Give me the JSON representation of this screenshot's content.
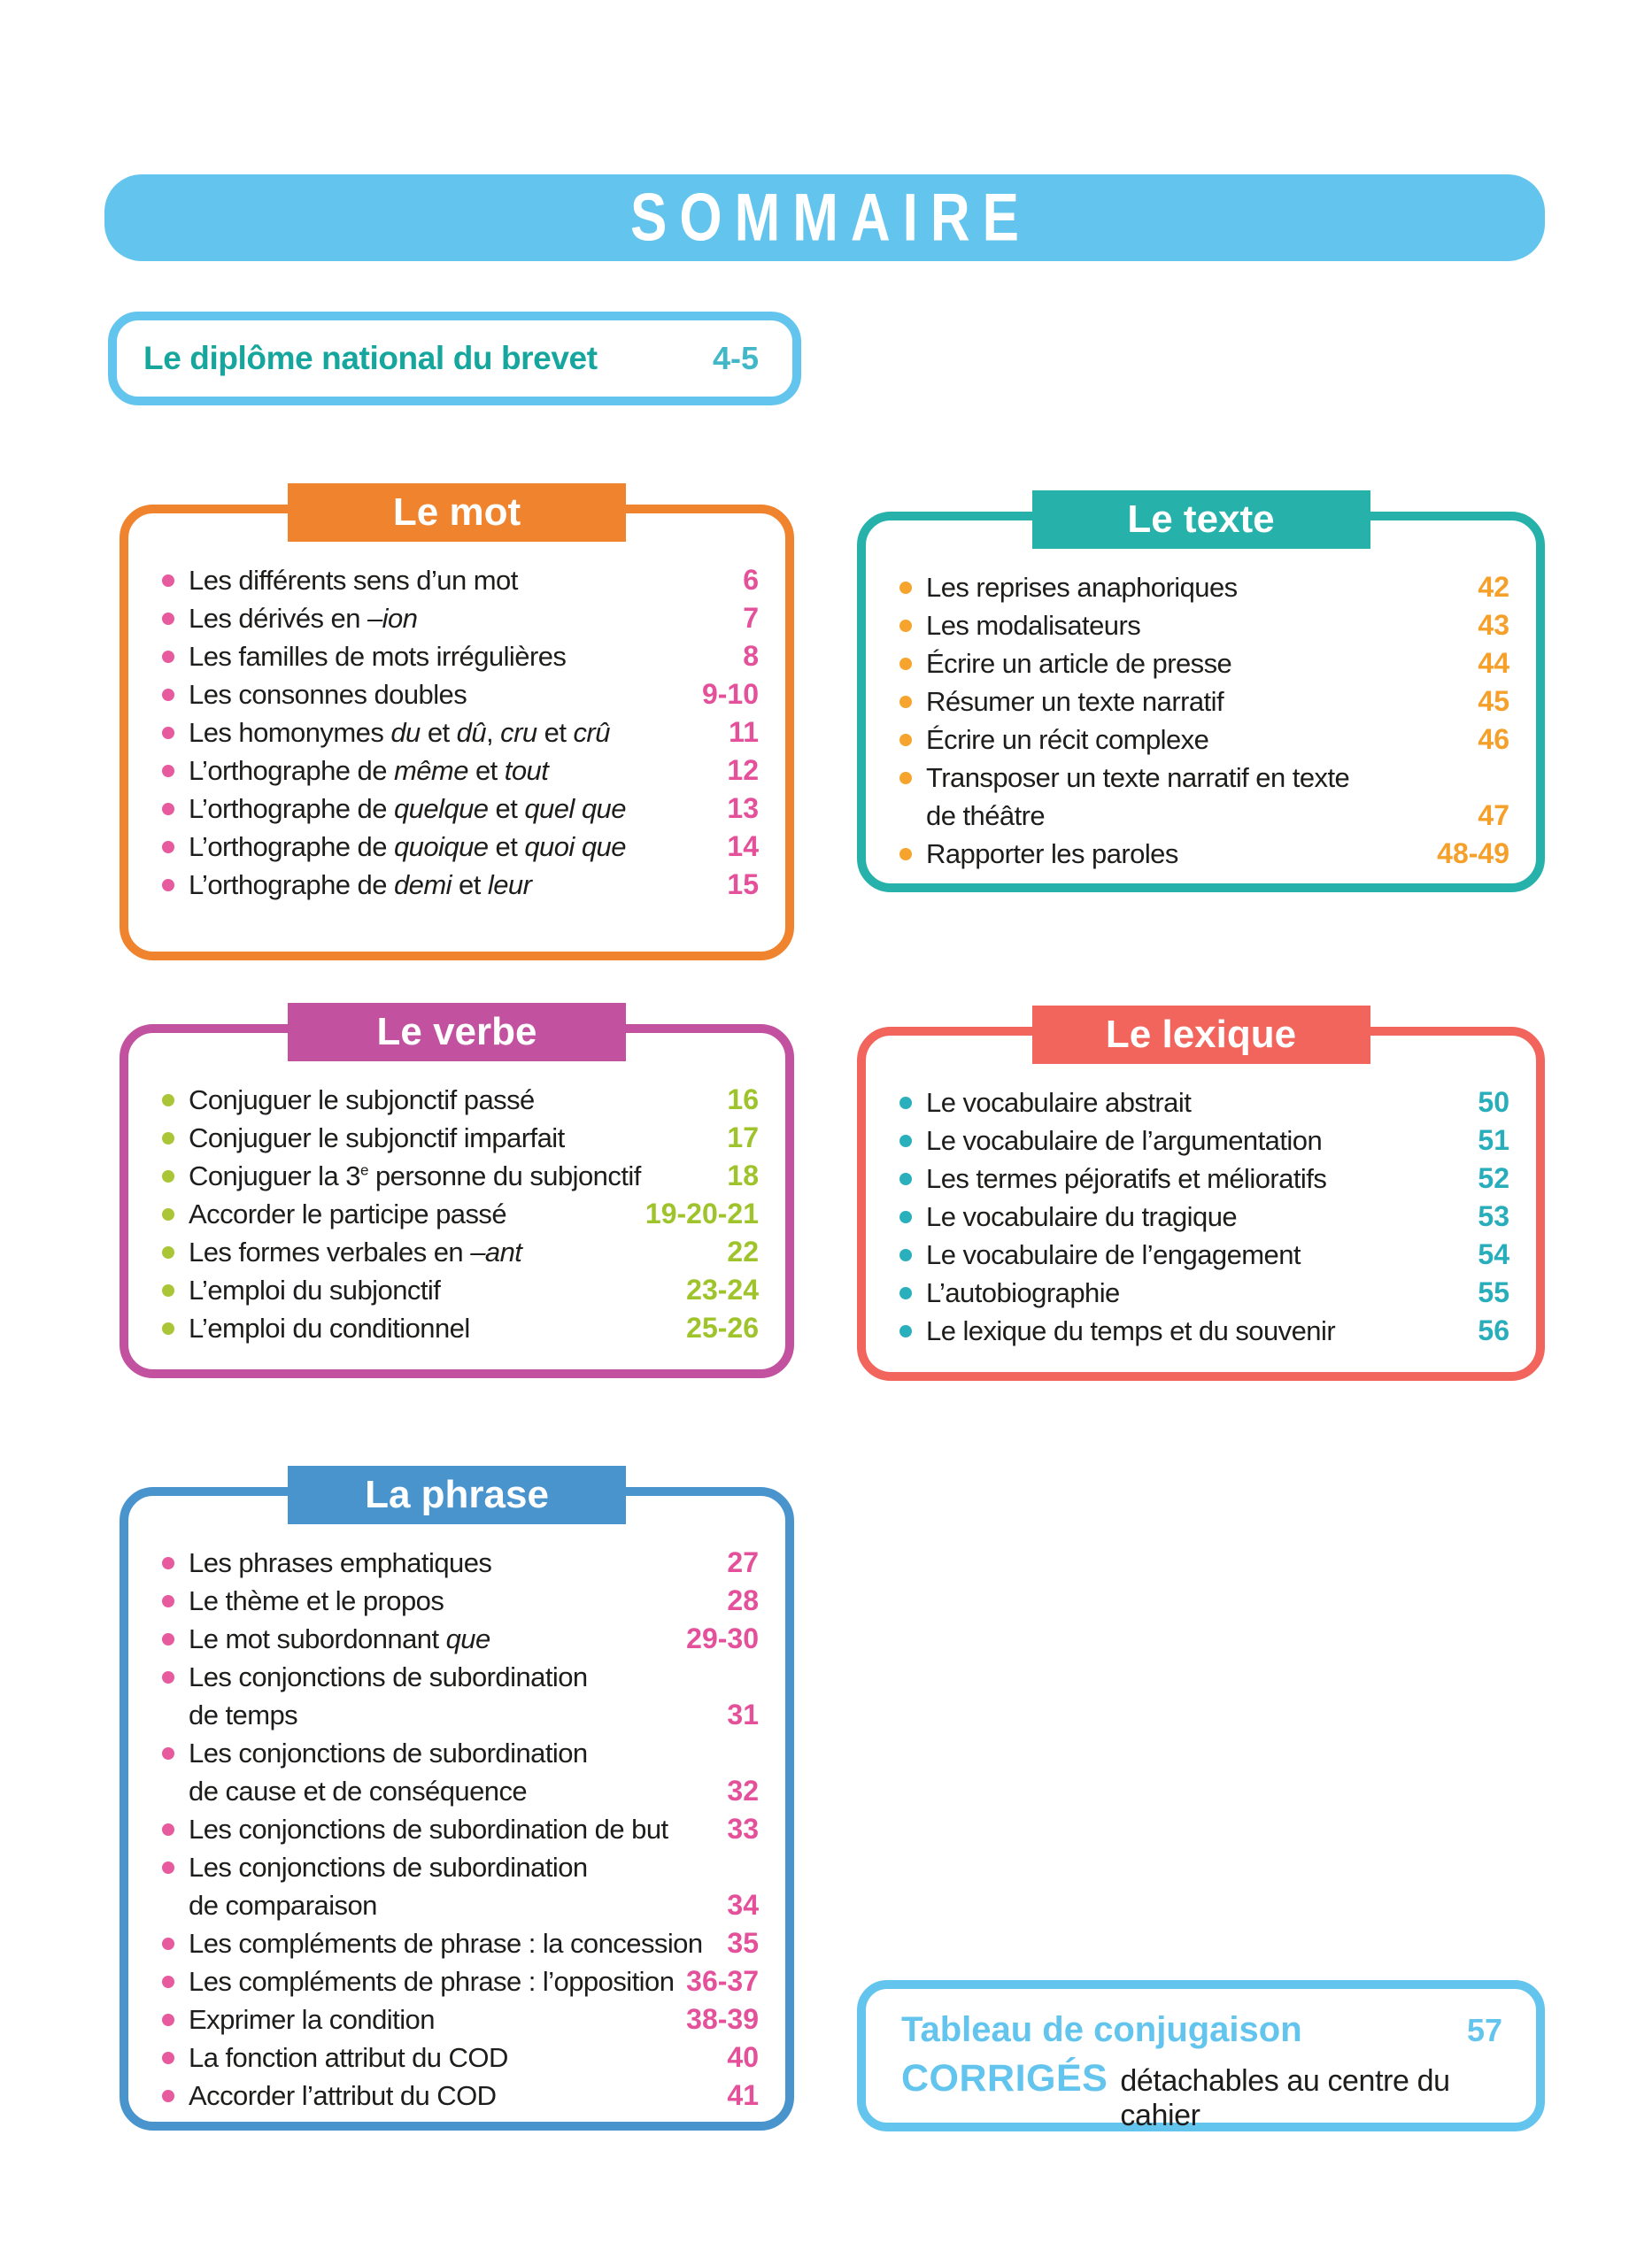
{
  "page_title": "SOMMAIRE",
  "colors": {
    "lightblue": "#63c5ee",
    "text": "#1d1d1b",
    "intro_label": "#16a69d",
    "intro_page": "#41b7c7"
  },
  "intro_box": {
    "label": "Le diplôme national du brevet",
    "page": "4-5"
  },
  "sections": [
    {
      "id": "mot",
      "title": "Le mot",
      "accent": "#f0832d",
      "bullet_color": "#e85a9e",
      "number_color": "#e4509a",
      "column": "left",
      "items": [
        {
          "lines": [
            [
              {
                "t": "Les différents sens d’un mot"
              }
            ]
          ],
          "page": "6"
        },
        {
          "lines": [
            [
              {
                "t": "Les dérivés en "
              },
              {
                "t": "–ion",
                "i": true
              }
            ]
          ],
          "page": "7"
        },
        {
          "lines": [
            [
              {
                "t": "Les familles de mots irrégulières"
              }
            ]
          ],
          "page": "8"
        },
        {
          "lines": [
            [
              {
                "t": "Les consonnes doubles"
              }
            ]
          ],
          "page": "9-10"
        },
        {
          "lines": [
            [
              {
                "t": "Les homonymes "
              },
              {
                "t": "du",
                "i": true
              },
              {
                "t": " et "
              },
              {
                "t": "dû",
                "i": true
              },
              {
                "t": ", "
              },
              {
                "t": "cru",
                "i": true
              },
              {
                "t": " et "
              },
              {
                "t": "crû",
                "i": true
              }
            ]
          ],
          "page": "11"
        },
        {
          "lines": [
            [
              {
                "t": "L’orthographe de "
              },
              {
                "t": "même",
                "i": true
              },
              {
                "t": " et "
              },
              {
                "t": "tout",
                "i": true
              }
            ]
          ],
          "page": "12"
        },
        {
          "lines": [
            [
              {
                "t": "L’orthographe de "
              },
              {
                "t": "quelque",
                "i": true
              },
              {
                "t": " et "
              },
              {
                "t": "quel que",
                "i": true
              }
            ]
          ],
          "page": "13"
        },
        {
          "lines": [
            [
              {
                "t": "L’orthographe de "
              },
              {
                "t": "quoique",
                "i": true
              },
              {
                "t": " et "
              },
              {
                "t": "quoi que",
                "i": true
              }
            ]
          ],
          "page": "14"
        },
        {
          "lines": [
            [
              {
                "t": "L’orthographe de "
              },
              {
                "t": "demi",
                "i": true
              },
              {
                "t": " et "
              },
              {
                "t": "leur",
                "i": true
              }
            ]
          ],
          "page": "15"
        }
      ]
    },
    {
      "id": "texte",
      "title": "Le texte",
      "accent": "#26b2ab",
      "bullet_color": "#f6a42d",
      "number_color": "#f5a02b",
      "column": "right",
      "items": [
        {
          "lines": [
            [
              {
                "t": "Les reprises anaphoriques"
              }
            ]
          ],
          "page": "42"
        },
        {
          "lines": [
            [
              {
                "t": "Les modalisateurs"
              }
            ]
          ],
          "page": "43"
        },
        {
          "lines": [
            [
              {
                "t": "Écrire un article de presse"
              }
            ]
          ],
          "page": "44"
        },
        {
          "lines": [
            [
              {
                "t": "Résumer un texte narratif"
              }
            ]
          ],
          "page": "45"
        },
        {
          "lines": [
            [
              {
                "t": "Écrire un récit complexe"
              }
            ]
          ],
          "page": "46"
        },
        {
          "lines": [
            [
              {
                "t": "Transposer un texte narratif en texte"
              }
            ],
            [
              {
                "t": "de théâtre"
              }
            ]
          ],
          "page": "47"
        },
        {
          "lines": [
            [
              {
                "t": "Rapporter les paroles"
              }
            ]
          ],
          "page": "48-49"
        }
      ]
    },
    {
      "id": "verbe",
      "title": "Le verbe",
      "accent": "#c2519f",
      "bullet_color": "#aac636",
      "number_color": "#9fc32a",
      "column": "left",
      "items": [
        {
          "lines": [
            [
              {
                "t": "Conjuguer le subjonctif passé"
              }
            ]
          ],
          "page": "16"
        },
        {
          "lines": [
            [
              {
                "t": "Conjuguer le subjonctif imparfait"
              }
            ]
          ],
          "page": "17"
        },
        {
          "lines": [
            [
              {
                "t": "Conjuguer la 3"
              },
              {
                "t": "e",
                "sup": true
              },
              {
                "t": " personne du subjonctif"
              }
            ]
          ],
          "page": "18"
        },
        {
          "lines": [
            [
              {
                "t": "Accorder le participe passé"
              }
            ]
          ],
          "page": "19-20-21"
        },
        {
          "lines": [
            [
              {
                "t": "Les formes verbales en "
              },
              {
                "t": "–ant",
                "i": true
              }
            ]
          ],
          "page": "22"
        },
        {
          "lines": [
            [
              {
                "t": "L’emploi du subjonctif"
              }
            ]
          ],
          "page": "23-24"
        },
        {
          "lines": [
            [
              {
                "t": "L’emploi du conditionnel"
              }
            ]
          ],
          "page": "25-26"
        }
      ]
    },
    {
      "id": "lexique",
      "title": "Le lexique",
      "accent": "#f2655c",
      "bullet_color": "#2aafbd",
      "number_color": "#28adbb",
      "column": "right",
      "items": [
        {
          "lines": [
            [
              {
                "t": "Le vocabulaire abstrait"
              }
            ]
          ],
          "page": "50"
        },
        {
          "lines": [
            [
              {
                "t": "Le vocabulaire de l’argumentation"
              }
            ]
          ],
          "page": "51"
        },
        {
          "lines": [
            [
              {
                "t": "Les termes péjoratifs et mélioratifs"
              }
            ]
          ],
          "page": "52"
        },
        {
          "lines": [
            [
              {
                "t": "Le vocabulaire du tragique"
              }
            ]
          ],
          "page": "53"
        },
        {
          "lines": [
            [
              {
                "t": "Le vocabulaire de l’engagement"
              }
            ]
          ],
          "page": "54"
        },
        {
          "lines": [
            [
              {
                "t": "L’autobiographie"
              }
            ]
          ],
          "page": "55"
        },
        {
          "lines": [
            [
              {
                "t": "Le lexique du temps et du souvenir"
              }
            ]
          ],
          "page": "56"
        }
      ]
    },
    {
      "id": "phrase",
      "title": "La phrase",
      "accent": "#4a94cd",
      "bullet_color": "#e85a9e",
      "number_color": "#e4509a",
      "column": "left",
      "items": [
        {
          "lines": [
            [
              {
                "t": "Les phrases emphatiques"
              }
            ]
          ],
          "page": "27"
        },
        {
          "lines": [
            [
              {
                "t": "Le thème et le propos"
              }
            ]
          ],
          "page": "28"
        },
        {
          "lines": [
            [
              {
                "t": "Le mot subordonnant "
              },
              {
                "t": "que",
                "i": true
              }
            ]
          ],
          "page": "29-30"
        },
        {
          "lines": [
            [
              {
                "t": "Les conjonctions de subordination"
              }
            ],
            [
              {
                "t": "de temps"
              }
            ]
          ],
          "page": "31"
        },
        {
          "lines": [
            [
              {
                "t": "Les conjonctions de subordination"
              }
            ],
            [
              {
                "t": "de cause et de conséquence"
              }
            ]
          ],
          "page": "32"
        },
        {
          "lines": [
            [
              {
                "t": "Les conjonctions de subordination de but"
              }
            ]
          ],
          "page": "33"
        },
        {
          "lines": [
            [
              {
                "t": "Les conjonctions de subordination"
              }
            ],
            [
              {
                "t": "de comparaison"
              }
            ]
          ],
          "page": "34"
        },
        {
          "lines": [
            [
              {
                "t": "Les compléments de phrase : la concession"
              }
            ]
          ],
          "page": "35"
        },
        {
          "lines": [
            [
              {
                "t": "Les compléments de phrase : l’opposition"
              }
            ]
          ],
          "page": "36-37"
        },
        {
          "lines": [
            [
              {
                "t": "Exprimer la condition"
              }
            ]
          ],
          "page": "38-39"
        },
        {
          "lines": [
            [
              {
                "t": "La fonction attribut du COD"
              }
            ]
          ],
          "page": "40"
        },
        {
          "lines": [
            [
              {
                "t": "Accorder l’attribut du COD"
              }
            ]
          ],
          "page": "41"
        }
      ]
    }
  ],
  "footer_box": {
    "line1_label": "Tableau de conjugaison",
    "line1_page": "57",
    "line2_strong": "CORRIGÉS",
    "line2_text": "détachables au centre du cahier"
  }
}
